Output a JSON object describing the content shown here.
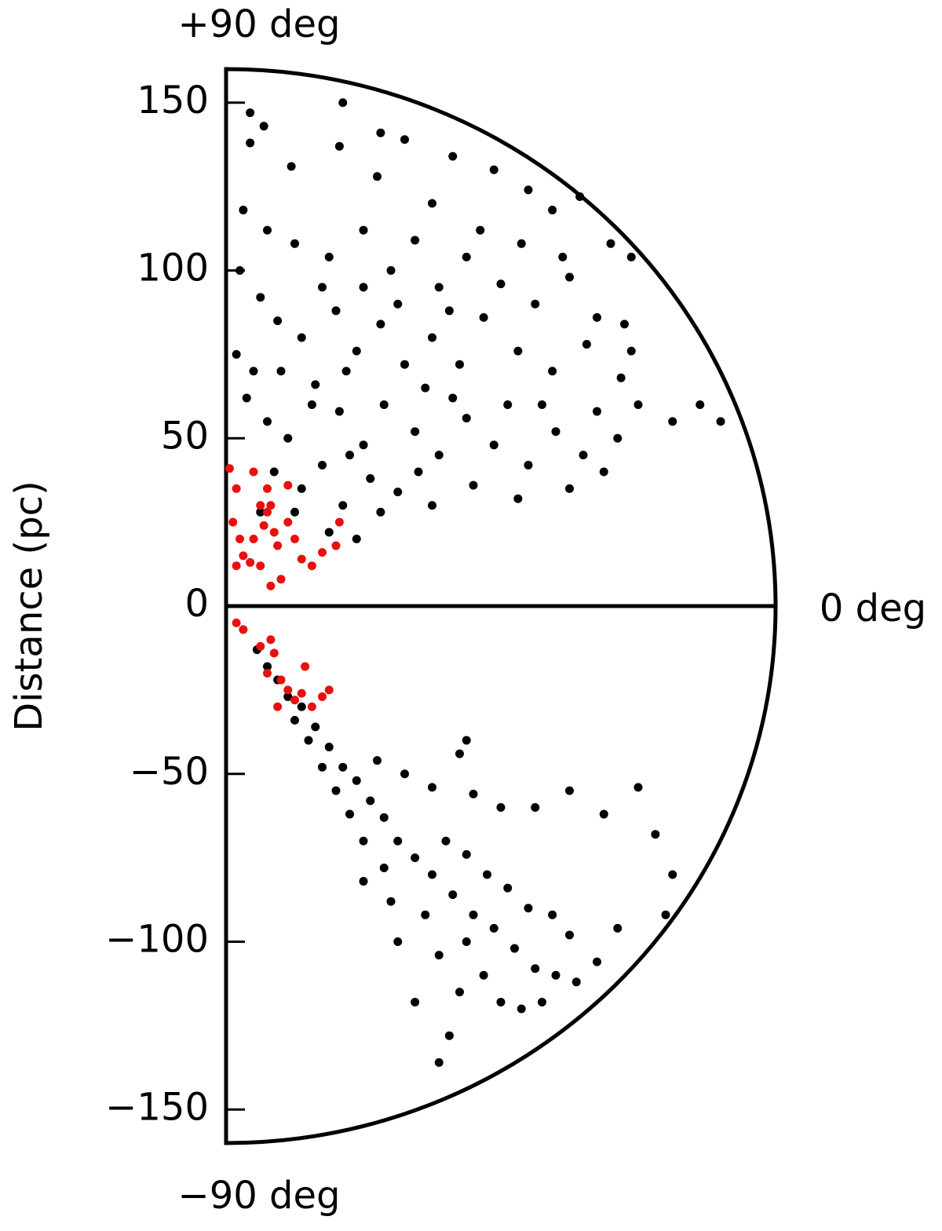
{
  "chart_data": {
    "type": "scatter",
    "annotations": {
      "top": "+90 deg",
      "right": "0 deg",
      "bottom": "−90 deg"
    },
    "ylabel": "Distance (pc)",
    "xlim": [
      0,
      160
    ],
    "ylim": [
      -160,
      160
    ],
    "yticks": [
      {
        "value": 150,
        "label": "150"
      },
      {
        "value": 100,
        "label": "100"
      },
      {
        "value": 50,
        "label": "50"
      },
      0,
      {
        "value": -50,
        "label": "−50"
      },
      {
        "value": -100,
        "label": "−100"
      },
      {
        "value": -150,
        "label": "−150"
      }
    ],
    "series": [
      {
        "name": "upper",
        "color": "#000000",
        "x": [
          7,
          7,
          11,
          19,
          34,
          33,
          45,
          52,
          66,
          78,
          88,
          95,
          103,
          118,
          112,
          5,
          12,
          20,
          30,
          40,
          48,
          55,
          62,
          70,
          80,
          90,
          100,
          108,
          116,
          4,
          10,
          15,
          22,
          32,
          38,
          45,
          52,
          60,
          68,
          75,
          85,
          95,
          105,
          115,
          120,
          130,
          138,
          144,
          6,
          12,
          18,
          26,
          33,
          40,
          46,
          55,
          62,
          70,
          78,
          88,
          96,
          104,
          110,
          100,
          85,
          72,
          60,
          50,
          42,
          34,
          28,
          22,
          30,
          38,
          20,
          14,
          10,
          25,
          35,
          58,
          65,
          82,
          92,
          108,
          114,
          3,
          8,
          16,
          28,
          44,
          60,
          74,
          86,
          98,
          50,
          66,
          40,
          36,
          56,
          45,
          118
        ],
        "y": [
          147,
          138,
          143,
          131,
          150,
          137,
          141,
          139,
          134,
          130,
          124,
          118,
          122,
          104,
          108,
          118,
          112,
          108,
          104,
          112,
          100,
          109,
          95,
          104,
          96,
          90,
          98,
          86,
          84,
          100,
          92,
          85,
          80,
          88,
          76,
          84,
          72,
          80,
          72,
          86,
          76,
          70,
          78,
          68,
          60,
          55,
          60,
          55,
          62,
          55,
          50,
          66,
          58,
          48,
          60,
          52,
          45,
          56,
          48,
          42,
          52,
          45,
          40,
          35,
          32,
          36,
          30,
          34,
          38,
          30,
          42,
          35,
          22,
          20,
          28,
          40,
          28,
          60,
          70,
          65,
          88,
          60,
          60,
          58,
          50,
          75,
          70,
          70,
          95,
          128,
          120,
          112,
          108,
          104,
          90,
          62,
          95,
          45,
          40,
          28,
          76
        ]
      },
      {
        "name": "upper-red",
        "color": "#e8100f",
        "x": [
          1,
          3,
          8,
          10,
          12,
          12,
          13,
          11,
          14,
          8,
          5,
          3,
          7,
          10,
          15,
          18,
          20,
          22,
          25,
          28,
          32,
          33,
          16,
          13,
          18,
          2,
          4
        ],
        "y": [
          41,
          35,
          40,
          30,
          35,
          28,
          30,
          24,
          22,
          20,
          15,
          12,
          13,
          12,
          18,
          25,
          20,
          14,
          12,
          16,
          18,
          25,
          8,
          6,
          36,
          25,
          20
        ]
      },
      {
        "name": "lower",
        "color": "#000000",
        "x": [
          9,
          12,
          15,
          18,
          22,
          26,
          30,
          34,
          38,
          42,
          46,
          50,
          55,
          60,
          66,
          72,
          78,
          84,
          90,
          96,
          102,
          70,
          75,
          80,
          68,
          65,
          62,
          55,
          50,
          48,
          58,
          64,
          70,
          76,
          82,
          88,
          95,
          100,
          90,
          100,
          110,
          120,
          125,
          130,
          128,
          40,
          36,
          32,
          28,
          44,
          52,
          60,
          72,
          80,
          68,
          70,
          24,
          20,
          40,
          46,
          62,
          86,
          92,
          108,
          114
        ],
        "y": [
          -13,
          -18,
          -22,
          -27,
          -30,
          -36,
          -42,
          -48,
          -52,
          -58,
          -63,
          -70,
          -75,
          -80,
          -86,
          -92,
          -96,
          -102,
          -108,
          -110,
          -112,
          -100,
          -110,
          -118,
          -115,
          -128,
          -136,
          -118,
          -100,
          -88,
          -92,
          -70,
          -74,
          -80,
          -84,
          -90,
          -92,
          -98,
          -60,
          -55,
          -62,
          -54,
          -68,
          -80,
          -92,
          -70,
          -62,
          -55,
          -48,
          -46,
          -50,
          -54,
          -56,
          -60,
          -44,
          -40,
          -40,
          -34,
          -82,
          -78,
          -104,
          -120,
          -118,
          -106,
          -96
        ]
      },
      {
        "name": "lower-red",
        "color": "#e8100f",
        "x": [
          3,
          5,
          10,
          13,
          14,
          12,
          16,
          18,
          20,
          22,
          23,
          25,
          28,
          30,
          15
        ],
        "y": [
          -5,
          -7,
          -12,
          -10,
          -14,
          -20,
          -22,
          -25,
          -28,
          -26,
          -18,
          -30,
          -27,
          -25,
          -30
        ]
      }
    ]
  }
}
